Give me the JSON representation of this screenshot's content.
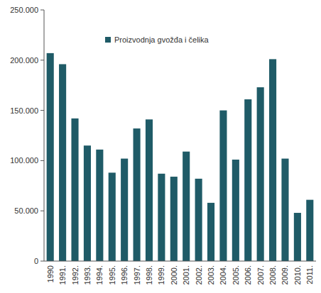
{
  "chart_data": {
    "type": "bar",
    "categories": [
      "1990",
      "1991.",
      "1992.",
      "1993.",
      "1994.",
      "1995.",
      "1996.",
      "1997.",
      "1998.",
      "1999.",
      "2000.",
      "2001.",
      "2002.",
      "2003.",
      "2004.",
      "2005.",
      "2006.",
      "2007.",
      "2008.",
      "2009.",
      "2010.",
      "2011."
    ],
    "series": [
      {
        "name": "Proizvodnja gvožđa i čelika",
        "color": "#1f5b67",
        "values": [
          207000,
          196000,
          142000,
          115000,
          111000,
          88000,
          102000,
          132000,
          141000,
          87000,
          84000,
          109000,
          82000,
          58000,
          150000,
          101000,
          161000,
          173000,
          201000,
          102000,
          48000,
          61000
        ]
      }
    ],
    "ylim": [
      0,
      250000
    ],
    "yticks": [
      0,
      {
        "value": 50000,
        "label": "50.000"
      },
      {
        "value": 100000,
        "label": "100.000"
      },
      {
        "value": 150000,
        "label": "150.000"
      },
      {
        "value": 200000,
        "label": "200.000"
      },
      {
        "value": 250000,
        "label": "250.000"
      }
    ],
    "grid": false,
    "legend": "top"
  }
}
